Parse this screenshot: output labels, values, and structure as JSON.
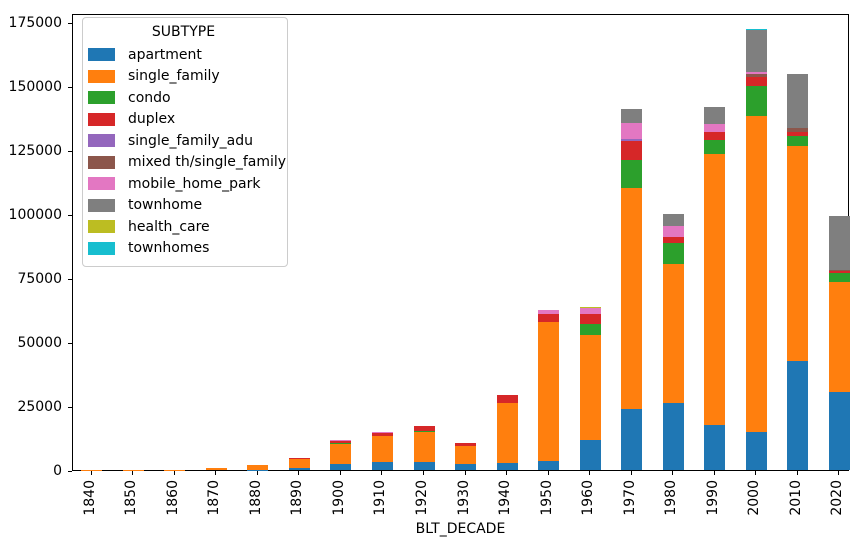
{
  "chart_data": {
    "type": "bar",
    "stacked": true,
    "title": "",
    "xlabel": "BLT_DECADE",
    "ylabel": "",
    "grid": false,
    "legend_title": "SUBTYPE",
    "legend_position": "upper left",
    "ylim": [
      0,
      178400
    ],
    "y_ticks": [
      0,
      25000,
      50000,
      75000,
      100000,
      125000,
      150000,
      175000
    ],
    "categories": [
      "1840",
      "1850",
      "1860",
      "1870",
      "1880",
      "1890",
      "1900",
      "1910",
      "1920",
      "1930",
      "1940",
      "1950",
      "1960",
      "1970",
      "1980",
      "1990",
      "2000",
      "2010",
      "2020"
    ],
    "series": [
      {
        "name": "apartment",
        "color": "#1f77b4",
        "values": [
          0,
          0,
          0,
          0,
          100,
          900,
          2300,
          3200,
          3000,
          2500,
          2800,
          3600,
          11700,
          23800,
          26100,
          17600,
          14700,
          42700,
          30600
        ]
      },
      {
        "name": "single_family",
        "color": "#ff7f0e",
        "values": [
          50,
          100,
          200,
          900,
          1700,
          3500,
          8200,
          10200,
          11900,
          6800,
          23400,
          54100,
          41000,
          86200,
          54300,
          105600,
          123600,
          83900,
          42900
        ]
      },
      {
        "name": "condo",
        "color": "#2ca02c",
        "values": [
          0,
          0,
          0,
          0,
          0,
          0,
          100,
          0,
          500,
          0,
          0,
          0,
          4300,
          11000,
          8200,
          5700,
          11700,
          3700,
          3400
        ]
      },
      {
        "name": "duplex",
        "color": "#d62728",
        "values": [
          0,
          0,
          0,
          0,
          0,
          400,
          800,
          1000,
          1600,
          1400,
          3100,
          3100,
          3900,
          7500,
          2200,
          3100,
          3300,
          1800,
          800
        ]
      },
      {
        "name": "single_family_adu",
        "color": "#9467bd",
        "values": [
          0,
          0,
          0,
          0,
          0,
          0,
          0,
          0,
          0,
          0,
          0,
          0,
          0,
          900,
          0,
          0,
          0,
          0,
          0
        ]
      },
      {
        "name": "mixed th/single_family",
        "color": "#8c564b",
        "values": [
          0,
          0,
          0,
          0,
          0,
          0,
          0,
          300,
          0,
          0,
          0,
          0,
          0,
          0,
          0,
          0,
          1200,
          1400,
          500
        ]
      },
      {
        "name": "mobile_home_park",
        "color": "#e377c2",
        "values": [
          0,
          0,
          0,
          0,
          0,
          0,
          500,
          300,
          0,
          0,
          0,
          1650,
          2600,
          6000,
          4500,
          3000,
          1000,
          0,
          0
        ]
      },
      {
        "name": "townhome",
        "color": "#7f7f7f",
        "values": [
          0,
          0,
          0,
          0,
          0,
          0,
          0,
          0,
          0,
          0,
          0,
          0,
          0,
          5500,
          4600,
          6600,
          16400,
          21000,
          20900
        ]
      },
      {
        "name": "health_care",
        "color": "#bcbd22",
        "values": [
          0,
          0,
          0,
          0,
          0,
          0,
          0,
          0,
          0,
          0,
          0,
          0,
          100,
          0,
          0,
          0,
          100,
          0,
          0
        ]
      },
      {
        "name": "townhomes",
        "color": "#17becf",
        "values": [
          0,
          0,
          0,
          0,
          0,
          0,
          0,
          0,
          0,
          0,
          0,
          0,
          0,
          0,
          0,
          0,
          100,
          0,
          0
        ]
      }
    ]
  }
}
